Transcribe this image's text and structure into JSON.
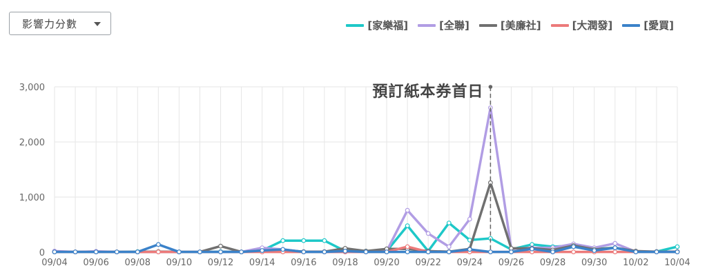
{
  "dropdown": {
    "label": "影響力分數"
  },
  "chart_data": {
    "type": "line",
    "ylim": [
      0,
      3000
    ],
    "yticks": [
      "0",
      "1,000",
      "2,000",
      "3,000"
    ],
    "ytick_values": [
      0,
      1000,
      2000,
      3000
    ],
    "categories": [
      "09/04",
      "09/05",
      "09/06",
      "09/07",
      "09/08",
      "09/09",
      "09/10",
      "09/11",
      "09/12",
      "09/13",
      "09/14",
      "09/15",
      "09/16",
      "09/17",
      "09/18",
      "09/19",
      "09/20",
      "09/21",
      "09/22",
      "09/23",
      "09/24",
      "09/25",
      "09/26",
      "09/27",
      "09/28",
      "09/29",
      "09/30",
      "10/01",
      "10/02",
      "10/03",
      "10/04"
    ],
    "xtick_labels": [
      "09/04",
      "09/06",
      "09/08",
      "09/10",
      "09/12",
      "09/14",
      "09/16",
      "09/18",
      "09/20",
      "09/22",
      "09/24",
      "09/26",
      "09/28",
      "09/30",
      "10/02",
      "10/04"
    ],
    "grid": true,
    "legend_position": "top-right",
    "series": [
      {
        "name": "[家樂福]",
        "color": "#1ec8c8",
        "values": [
          10,
          5,
          10,
          5,
          10,
          10,
          5,
          5,
          10,
          5,
          30,
          210,
          210,
          210,
          20,
          20,
          20,
          480,
          20,
          530,
          220,
          250,
          50,
          140,
          100,
          120,
          60,
          80,
          10,
          10,
          100
        ]
      },
      {
        "name": "[全聯]",
        "color": "#b19de4",
        "values": [
          20,
          5,
          15,
          5,
          5,
          5,
          5,
          5,
          5,
          5,
          80,
          50,
          5,
          5,
          5,
          5,
          20,
          760,
          340,
          100,
          600,
          2620,
          60,
          80,
          80,
          150,
          80,
          160,
          10,
          10,
          10
        ]
      },
      {
        "name": "[美廉社]",
        "color": "#707070",
        "values": [
          5,
          5,
          5,
          5,
          5,
          10,
          5,
          5,
          110,
          5,
          30,
          40,
          10,
          10,
          70,
          20,
          60,
          60,
          20,
          10,
          60,
          1260,
          70,
          70,
          40,
          120,
          50,
          80,
          20,
          10,
          10
        ]
      },
      {
        "name": "[大潤發]",
        "color": "#ec7a7a",
        "values": [
          5,
          5,
          5,
          5,
          5,
          5,
          5,
          5,
          5,
          5,
          5,
          5,
          5,
          5,
          5,
          5,
          5,
          100,
          5,
          5,
          5,
          5,
          5,
          5,
          5,
          5,
          5,
          5,
          5,
          5,
          5
        ]
      },
      {
        "name": "[愛買]",
        "color": "#3b82c9",
        "values": [
          5,
          5,
          5,
          5,
          5,
          140,
          5,
          5,
          5,
          5,
          30,
          50,
          5,
          5,
          20,
          5,
          5,
          5,
          5,
          5,
          50,
          5,
          5,
          60,
          5,
          100,
          30,
          80,
          5,
          5,
          5
        ]
      }
    ],
    "annotation": {
      "text": "預訂紙本券首日",
      "x": "09/25",
      "y": 3000
    }
  }
}
